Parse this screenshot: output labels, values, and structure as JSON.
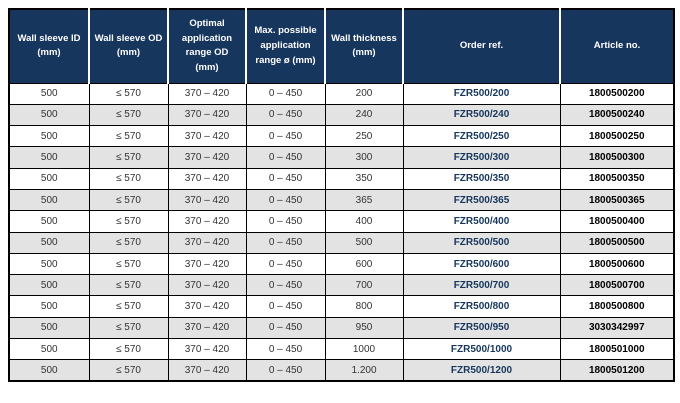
{
  "page": {
    "background": "#ffffff"
  },
  "table": {
    "colors": {
      "header_bg": "#17365d",
      "header_text": "#ffffff",
      "row_bg": "#ffffff",
      "row_alt_bg": "#e3e3e3",
      "body_text": "#333333",
      "order_ref_text": "#17365d",
      "article_no_text": "#000000",
      "grid": "#000000"
    },
    "columns": [
      {
        "id": "wall-sleeve-id",
        "label": "Wall sleeve ID\n(mm)"
      },
      {
        "id": "wall-sleeve-od",
        "label": "Wall sleeve OD\n(mm)"
      },
      {
        "id": "optimal-application-range-od",
        "label": "Optimal\napplication\nrange OD\n(mm)"
      },
      {
        "id": "max-possible-application-range",
        "label": "Max. possible\napplication\nrange ø (mm)"
      },
      {
        "id": "wall-thickness",
        "label": "Wall thickness\n(mm)"
      },
      {
        "id": "order-ref",
        "label": "Order ref."
      },
      {
        "id": "article-no",
        "label": "Article no."
      }
    ],
    "rows": [
      [
        "500",
        "≤ 570",
        "370 – 420",
        "0 – 450",
        "200",
        "FZR500/200",
        "1800500200"
      ],
      [
        "500",
        "≤ 570",
        "370 – 420",
        "0 – 450",
        "240",
        "FZR500/240",
        "1800500240"
      ],
      [
        "500",
        "≤ 570",
        "370 – 420",
        "0 – 450",
        "250",
        "FZR500/250",
        "1800500250"
      ],
      [
        "500",
        "≤ 570",
        "370 – 420",
        "0 – 450",
        "300",
        "FZR500/300",
        "1800500300"
      ],
      [
        "500",
        "≤ 570",
        "370 – 420",
        "0 – 450",
        "350",
        "FZR500/350",
        "1800500350"
      ],
      [
        "500",
        "≤ 570",
        "370 – 420",
        "0 – 450",
        "365",
        "FZR500/365",
        "1800500365"
      ],
      [
        "500",
        "≤ 570",
        "370 – 420",
        "0 – 450",
        "400",
        "FZR500/400",
        "1800500400"
      ],
      [
        "500",
        "≤ 570",
        "370 – 420",
        "0 – 450",
        "500",
        "FZR500/500",
        "1800500500"
      ],
      [
        "500",
        "≤ 570",
        "370 – 420",
        "0 – 450",
        "600",
        "FZR500/600",
        "1800500600"
      ],
      [
        "500",
        "≤ 570",
        "370 – 420",
        "0 – 450",
        "700",
        "FZR500/700",
        "1800500700"
      ],
      [
        "500",
        "≤ 570",
        "370 – 420",
        "0 – 450",
        "800",
        "FZR500/800",
        "1800500800"
      ],
      [
        "500",
        "≤ 570",
        "370 – 420",
        "0 – 450",
        "950",
        "FZR500/950",
        "3030342997"
      ],
      [
        "500",
        "≤ 570",
        "370 – 420",
        "0 – 450",
        "1000",
        "FZR500/1000",
        "1800501000"
      ],
      [
        "500",
        "≤ 570",
        "370 – 420",
        "0 – 450",
        "1.200",
        "FZR500/1200",
        "1800501200"
      ]
    ]
  }
}
